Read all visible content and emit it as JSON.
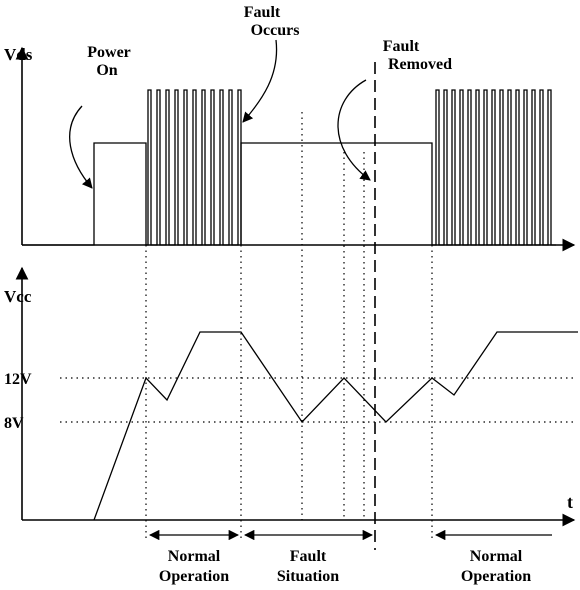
{
  "labels": {
    "vds_axis": "Vds",
    "vcc_axis": "Vcc",
    "t_axis": "t",
    "level_12v": "12V",
    "level_8v": "8V",
    "power_on_line1": "Power",
    "power_on_line2": "On",
    "fault_occurs_line1": "Fault",
    "fault_occurs_line2": "Occurs",
    "fault_removed_line1": "Fault",
    "fault_removed_line2": "Removed",
    "normal_op_1_line1": "Normal",
    "normal_op_1_line2": "Operation",
    "fault_situation_line1": "Fault",
    "fault_situation_line2": "Situation",
    "normal_op_2_line1": "Normal",
    "normal_op_2_line2": "Operation"
  }
}
